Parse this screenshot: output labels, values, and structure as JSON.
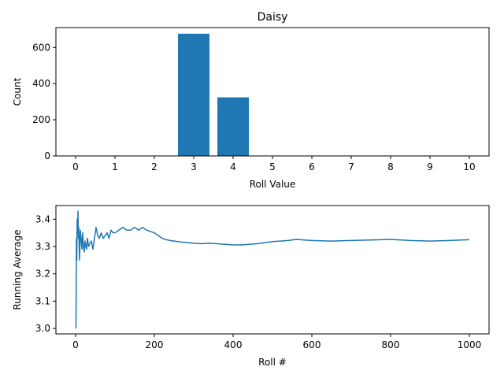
{
  "chart_data": [
    {
      "type": "bar",
      "title": "Daisy",
      "xlabel": "Roll Value",
      "ylabel": "Count",
      "categories": [
        "0",
        "1",
        "2",
        "3",
        "4",
        "5",
        "6",
        "7",
        "8",
        "9",
        "10"
      ],
      "values": [
        0,
        0,
        0,
        676,
        324,
        0,
        0,
        0,
        0,
        0,
        0
      ],
      "xlim": [
        -0.5,
        10.5
      ],
      "ylim": [
        0,
        710
      ],
      "yticks": [
        0,
        200,
        400,
        600
      ],
      "color": "#1f77b4"
    },
    {
      "type": "line",
      "title": "",
      "xlabel": "Roll #",
      "ylabel": "Running Average",
      "xlim": [
        -50,
        1050
      ],
      "ylim": [
        2.98,
        3.45
      ],
      "xticks": [
        0,
        200,
        400,
        600,
        800,
        1000
      ],
      "yticks": [
        3.0,
        3.1,
        3.2,
        3.3,
        3.4
      ],
      "color": "#1f77b4",
      "series": [
        {
          "x": [
            1,
            2,
            3,
            4,
            5,
            6,
            7,
            8,
            9,
            10,
            12,
            14,
            16,
            18,
            20,
            22,
            24,
            26,
            28,
            30,
            33,
            36,
            40,
            44,
            48,
            52,
            56,
            60,
            65,
            70,
            75,
            80,
            85,
            90,
            95,
            100,
            110,
            120,
            130,
            140,
            150,
            160,
            170,
            180,
            190,
            200,
            210,
            220,
            230,
            240,
            250,
            260,
            270,
            280,
            300,
            320,
            340,
            360,
            380,
            400,
            420,
            440,
            460,
            480,
            500,
            520,
            540,
            560,
            580,
            600,
            650,
            700,
            750,
            800,
            850,
            900,
            950,
            1000
          ],
          "y": [
            3.0,
            3.33,
            3.25,
            3.4,
            3.35,
            3.43,
            3.33,
            3.37,
            3.3,
            3.25,
            3.36,
            3.33,
            3.29,
            3.35,
            3.3,
            3.28,
            3.32,
            3.3,
            3.29,
            3.33,
            3.3,
            3.31,
            3.32,
            3.29,
            3.33,
            3.37,
            3.34,
            3.33,
            3.35,
            3.33,
            3.34,
            3.35,
            3.33,
            3.36,
            3.35,
            3.35,
            3.36,
            3.37,
            3.36,
            3.36,
            3.37,
            3.36,
            3.37,
            3.36,
            3.355,
            3.35,
            3.34,
            3.33,
            3.325,
            3.322,
            3.32,
            3.318,
            3.316,
            3.315,
            3.312,
            3.31,
            3.312,
            3.31,
            3.308,
            3.306,
            3.306,
            3.308,
            3.31,
            3.314,
            3.318,
            3.32,
            3.322,
            3.326,
            3.324,
            3.322,
            3.32,
            3.322,
            3.324,
            3.326,
            3.322,
            3.32,
            3.322,
            3.325
          ]
        }
      ]
    }
  ]
}
